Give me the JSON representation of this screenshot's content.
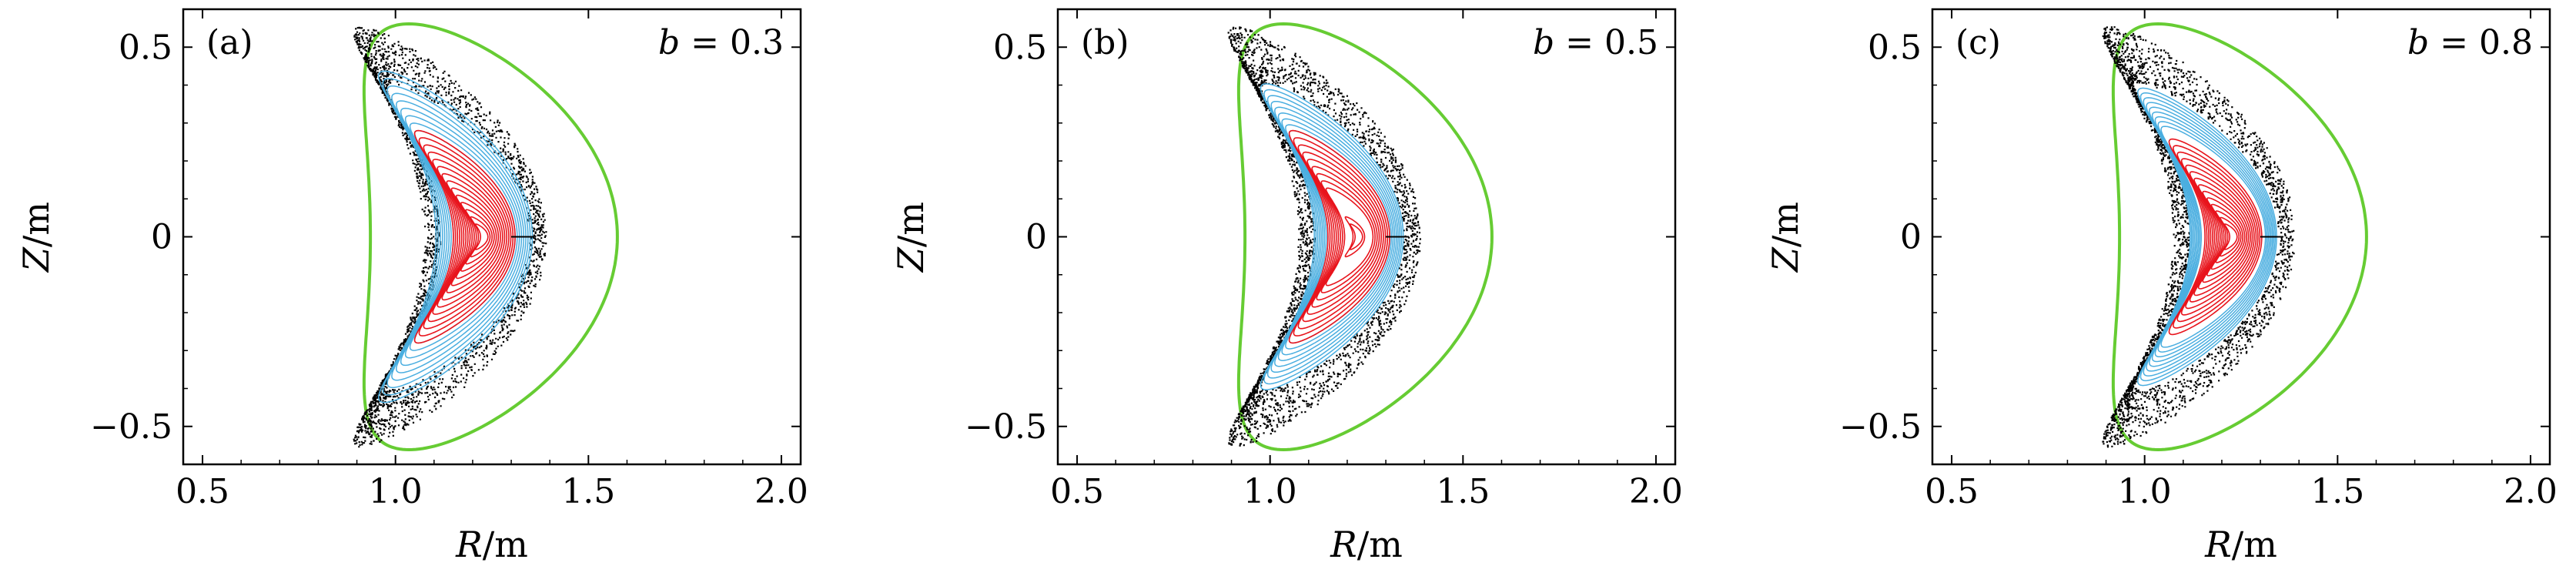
{
  "chart_data": [
    {
      "type": "scatter",
      "panel_label": "(a)",
      "param_name": "b",
      "param_value": "0.3",
      "xlabel": {
        "var": "R",
        "unit": "/m"
      },
      "ylabel": {
        "var": "Z",
        "unit": "/m"
      },
      "xlim": [
        0.45,
        2.05
      ],
      "ylim": [
        -0.6,
        0.6
      ],
      "xticks": [
        0.5,
        1.0,
        1.5,
        2.0
      ],
      "xtick_labels": [
        "0.5",
        "1.0",
        "1.5",
        "2.0"
      ],
      "yticks": [
        0.5,
        0,
        -0.5
      ],
      "ytick_labels": [
        "0.5",
        "0",
        "−0.5"
      ],
      "series": [
        {
          "name": "boundary",
          "style": "line",
          "color": "#66cc33"
        },
        {
          "name": "stochastic field lines",
          "style": "dots",
          "color": "#000000"
        },
        {
          "name": "outer flux surfaces",
          "style": "contours",
          "color": "#4aaee0",
          "r_range": [
            0.5,
            0.78
          ]
        },
        {
          "name": "core flux surfaces",
          "style": "contours",
          "color": "#e8141c",
          "r_range": [
            0.06,
            0.5
          ],
          "has_hole": false
        }
      ]
    },
    {
      "type": "scatter",
      "panel_label": "(b)",
      "param_name": "b",
      "param_value": "0.5",
      "xlabel": {
        "var": "R",
        "unit": "/m"
      },
      "ylabel": {
        "var": "Z",
        "unit": "/m"
      },
      "xlim": [
        0.45,
        2.05
      ],
      "ylim": [
        -0.6,
        0.6
      ],
      "xticks": [
        0.5,
        1.0,
        1.5,
        2.0
      ],
      "xtick_labels": [
        "0.5",
        "1.0",
        "1.5",
        "2.0"
      ],
      "yticks": [
        0.5,
        0,
        -0.5
      ],
      "ytick_labels": [
        "0.5",
        "0",
        "−0.5"
      ],
      "series": [
        {
          "name": "boundary",
          "style": "line",
          "color": "#66cc33"
        },
        {
          "name": "stochastic field lines",
          "style": "dots",
          "color": "#000000"
        },
        {
          "name": "outer flux surfaces",
          "style": "contours",
          "color": "#4aaee0",
          "r_range": [
            0.5,
            0.72
          ]
        },
        {
          "name": "core flux surfaces",
          "style": "contours",
          "color": "#e8141c",
          "r_range": [
            0.06,
            0.5
          ],
          "has_hole": true
        }
      ]
    },
    {
      "type": "scatter",
      "panel_label": "(c)",
      "param_name": "b",
      "param_value": "0.8",
      "xlabel": {
        "var": "R",
        "unit": "/m"
      },
      "ylabel": {
        "var": "Z",
        "unit": "/m"
      },
      "xlim": [
        0.45,
        2.05
      ],
      "ylim": [
        -0.6,
        0.6
      ],
      "xticks": [
        0.5,
        1.0,
        1.5,
        2.0
      ],
      "xtick_labels": [
        "0.5",
        "1.0",
        "1.5",
        "2.0"
      ],
      "yticks": [
        0.5,
        0,
        -0.5
      ],
      "ytick_labels": [
        "0.5",
        "0",
        "−0.5"
      ],
      "series": [
        {
          "name": "boundary",
          "style": "line",
          "color": "#66cc33"
        },
        {
          "name": "stochastic field lines",
          "style": "dots",
          "color": "#000000"
        },
        {
          "name": "outer flux surfaces",
          "style": "contours",
          "color": "#4aaee0",
          "r_range": [
            0.52,
            0.7
          ]
        },
        {
          "name": "core flux surfaces",
          "style": "contours",
          "color": "#e8141c",
          "r_range": [
            0.06,
            0.46
          ],
          "has_hole": false
        }
      ]
    }
  ]
}
